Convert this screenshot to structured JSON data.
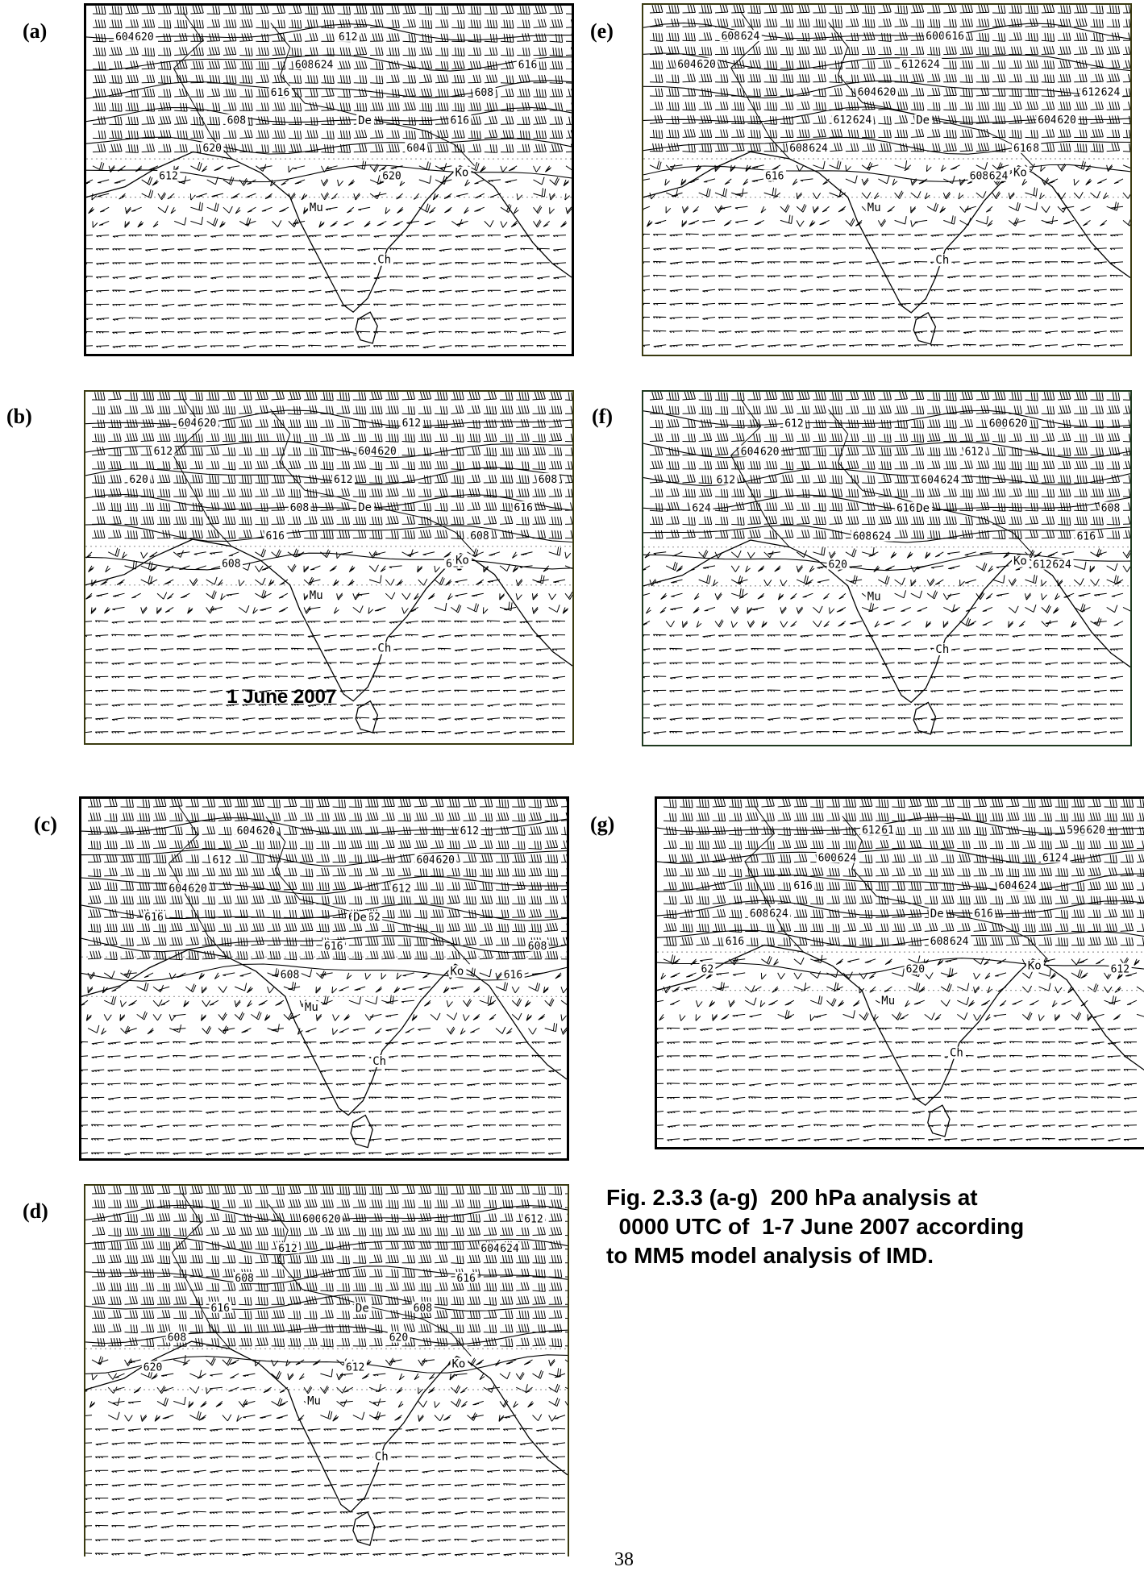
{
  "panels": [
    {
      "id": "a",
      "label": "(a)",
      "contours": [
        "604",
        "608",
        "608",
        "608",
        "604",
        "612",
        "612",
        "616",
        "616",
        "616",
        "620",
        "620",
        "620",
        "624"
      ],
      "cities": [
        "De",
        "Ko",
        "Mu",
        "Ch"
      ],
      "border_color": "#000000"
    },
    {
      "id": "b",
      "label": "(b)",
      "contours": [
        "604",
        "604",
        "608",
        "608",
        "608",
        "608",
        "612",
        "612",
        "612",
        "616",
        "616",
        "616",
        "620",
        "620",
        "620"
      ],
      "cities": [
        "De",
        "Ko",
        "Mu",
        "Ch"
      ],
      "date": "1 June 2007",
      "border_color": "#3a3a10"
    },
    {
      "id": "c",
      "label": "(c)",
      "contours": [
        "604",
        "604",
        "604",
        "608",
        "608",
        "608",
        "612",
        "612",
        "612",
        "616",
        "616",
        "616",
        "620",
        "620",
        "620",
        "62"
      ],
      "cities": [
        "De",
        "Ko",
        "Mu",
        "Ch"
      ],
      "border_color": "#000000"
    },
    {
      "id": "d",
      "label": "(d)",
      "contours": [
        "600",
        "604",
        "608",
        "608",
        "608",
        "612",
        "612",
        "612",
        "616",
        "616",
        "620",
        "620",
        "620",
        "624"
      ],
      "cities": [
        "De",
        "Ko",
        "Mu",
        "Ch"
      ],
      "border_color": "#3a3a10"
    },
    {
      "id": "e",
      "label": "(e)",
      "contours": [
        "600",
        "604",
        "604",
        "604",
        "608",
        "608",
        "608",
        "612",
        "612",
        "612",
        "616",
        "616",
        "616",
        "620",
        "620",
        "620",
        "624",
        "624",
        "624",
        "624",
        "624",
        "624",
        "8"
      ],
      "cities": [
        "De",
        "Ko",
        "Mu",
        "Ch"
      ],
      "border_color": "#3a3a10"
    },
    {
      "id": "f",
      "label": "(f)",
      "contours": [
        "600",
        "604",
        "604",
        "608",
        "608",
        "612",
        "612",
        "612",
        "612",
        "616",
        "616",
        "620",
        "620",
        "620",
        "624",
        "624",
        "624",
        "624"
      ],
      "cities": [
        "De",
        "Ko",
        "Mu",
        "Ch"
      ],
      "border_color": "#1f3a1f"
    },
    {
      "id": "g",
      "label": "(g)",
      "contours": [
        "596",
        "600",
        "604",
        "608",
        "608",
        "612",
        "612",
        "612",
        "616",
        "616",
        "616",
        "620",
        "620",
        "624",
        "624",
        "624",
        "624",
        "62",
        "61",
        "4"
      ],
      "cities": [
        "De",
        "Ko",
        "Mu",
        "Ch"
      ],
      "border_color": "#000000"
    }
  ],
  "caption": {
    "line1": "Fig. 2.3.3 (a-g)  200 hPa analysis at",
    "line2": "  0000 UTC of  1-7 June 2007 according",
    "line3": "to MM5 model analysis of IMD."
  },
  "page_number": "38"
}
